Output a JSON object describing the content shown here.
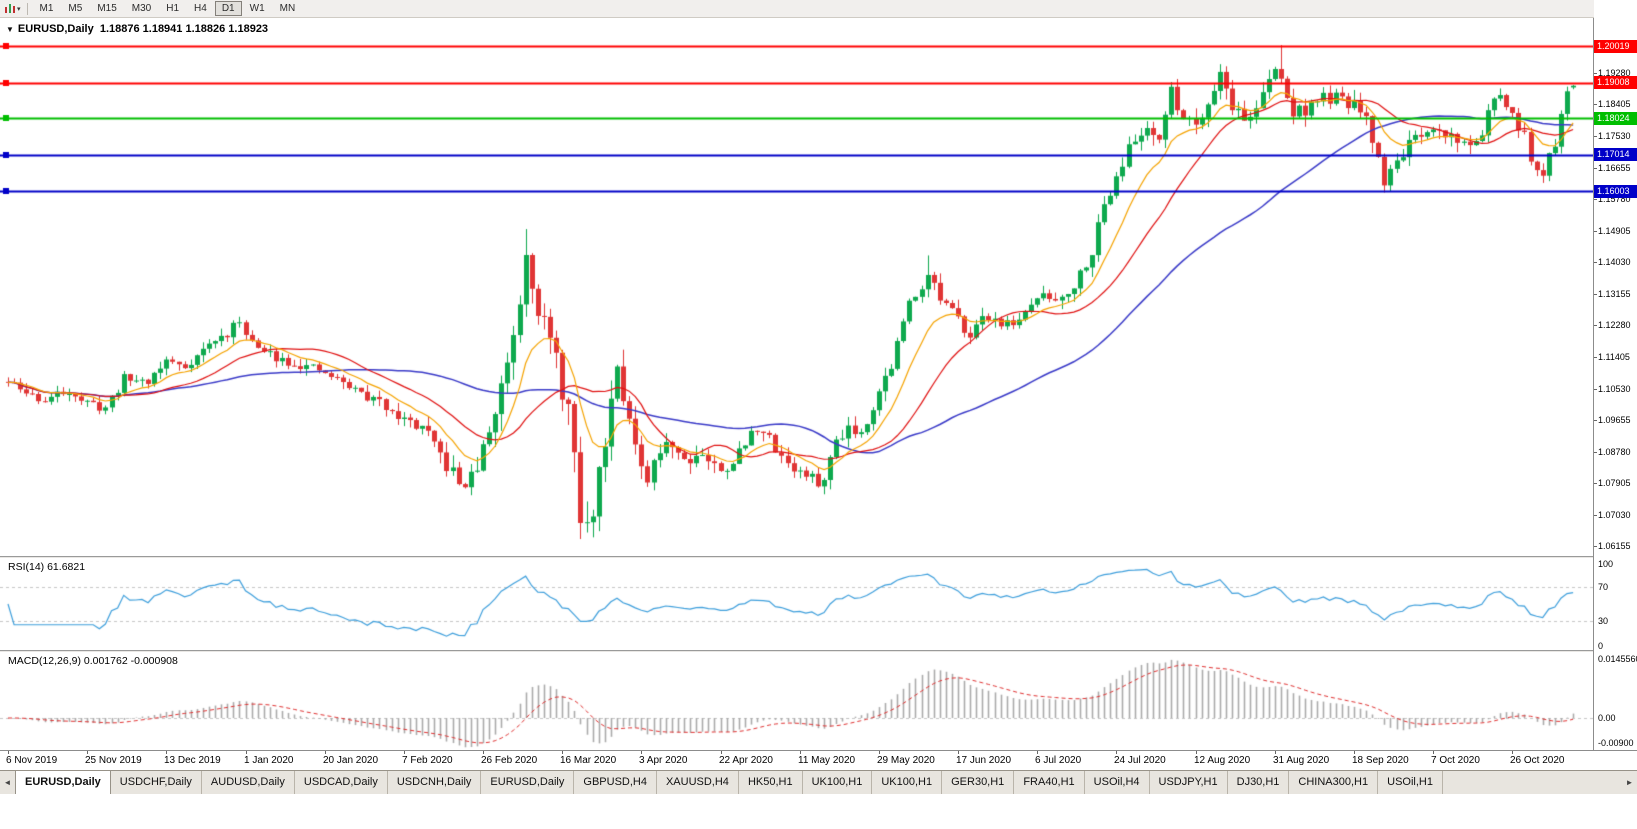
{
  "toolbar": {
    "chart_icon": "candlestick-chart-icon",
    "timeframes": [
      "M1",
      "M5",
      "M15",
      "M30",
      "H1",
      "H4",
      "D1",
      "W1",
      "MN"
    ],
    "active_timeframe": "D1"
  },
  "chart": {
    "symbol": "EURUSD",
    "period": "Daily",
    "title": "EURUSD,Daily  1.18876 1.18941 1.18826 1.18923",
    "ohlc": {
      "open": "1.18876",
      "high": "1.18941",
      "low": "1.18826",
      "close": "1.18923"
    }
  },
  "rsi": {
    "label": "RSI(14) 61.6821",
    "value": "61.6821",
    "levels": [
      "100",
      "70",
      "30",
      "0"
    ]
  },
  "macd": {
    "label": "MACD(12,26,9) 0.001762 -0.000908",
    "scale_labels": {
      "max": "0.0145560",
      "zero": "0.00",
      "min": "-0.00900"
    }
  },
  "price_axis": {
    "ticks": [
      "1.19280",
      "1.18405",
      "1.17530",
      "1.16655",
      "1.15780",
      "1.14905",
      "1.14030",
      "1.13155",
      "1.12280",
      "1.11405",
      "1.10530",
      "1.09655",
      "1.08780",
      "1.07905",
      "1.07030",
      "1.06155"
    ]
  },
  "hlines": [
    {
      "price": 1.20019,
      "label": "1.20019",
      "color": "#FF0000"
    },
    {
      "price": 1.19008,
      "label": "1.19008",
      "color": "#FF0000"
    },
    {
      "price": 1.18024,
      "label": "1.18024",
      "color": "#00BE00"
    },
    {
      "price": 1.17014,
      "label": "1.17014",
      "color": "#0000C8"
    },
    {
      "price": 1.16003,
      "label": "1.16003",
      "color": "#0000C8"
    }
  ],
  "date_axis": {
    "step": 13,
    "labels": [
      "6 Nov 2019",
      "25 Nov 2019",
      "13 Dec 2019",
      "1 Jan 2020",
      "20 Jan 2020",
      "7 Feb 2020",
      "26 Feb 2020",
      "16 Mar 2020",
      "3 Apr 2020",
      "22 Apr 2020",
      "11 May 2020",
      "29 May 2020",
      "17 Jun 2020",
      "6 Jul 2020",
      "24 Jul 2020",
      "12 Aug 2020",
      "31 Aug 2020",
      "18 Sep 2020",
      "7 Oct 2020",
      "26 Oct 2020"
    ]
  },
  "tabs": {
    "items": [
      "EURUSD,Daily",
      "USDCHF,Daily",
      "AUDUSD,Daily",
      "USDCAD,Daily",
      "USDCNH,Daily",
      "EURUSD,Daily",
      "GBPUSD,H4",
      "XAUUSD,H4",
      "HK50,H1",
      "UK100,H1",
      "UK100,H1",
      "GER30,H1",
      "FRA40,H1",
      "USOil,H4",
      "USDJPY,H1",
      "DJ30,H1",
      "CHINA300,H1",
      "USOil,H1"
    ],
    "active_index": 0,
    "scroll_left": "◄",
    "scroll_right": "►"
  },
  "colors": {
    "bull": "#0EA94E",
    "bear": "#E03535",
    "rsi_line": "#3E9FDC",
    "macd_hist": "#ABABAB",
    "macd_signal": "#E03030",
    "level_dash": "#C6C6C6"
  },
  "chart_data": {
    "type": "candlestick",
    "symbol": "EURUSD",
    "timeframe": "Daily",
    "bars": 258,
    "seed": 11,
    "ylim": [
      1.0589,
      1.208
    ],
    "last_bar": {
      "open": 1.18876,
      "high": 1.18941,
      "low": 1.18826,
      "close": 1.18923
    },
    "close_anchors": [
      [
        0,
        1.107
      ],
      [
        3,
        1.104
      ],
      [
        6,
        1.102
      ],
      [
        10,
        1.105
      ],
      [
        13,
        1.101
      ],
      [
        16,
        1.1
      ],
      [
        19,
        1.108
      ],
      [
        23,
        1.1075
      ],
      [
        26,
        1.113
      ],
      [
        29,
        1.1115
      ],
      [
        33,
        1.1175
      ],
      [
        36,
        1.1205
      ],
      [
        38,
        1.124
      ],
      [
        41,
        1.116
      ],
      [
        46,
        1.113
      ],
      [
        52,
        1.1095
      ],
      [
        56,
        1.106
      ],
      [
        60,
        1.102
      ],
      [
        63,
        1.1
      ],
      [
        65,
        1.0965
      ],
      [
        68,
        1.0945
      ],
      [
        71,
        1.0865
      ],
      [
        74,
        1.079
      ],
      [
        76,
        1.08
      ],
      [
        78,
        1.088
      ],
      [
        80,
        1.099
      ],
      [
        82,
        1.1135
      ],
      [
        84,
        1.13
      ],
      [
        85,
        1.145
      ],
      [
        87,
        1.128
      ],
      [
        89,
        1.118
      ],
      [
        92,
        1.0995
      ],
      [
        94,
        1.069
      ],
      [
        95,
        1.066
      ],
      [
        96,
        1.072
      ],
      [
        98,
        1.092
      ],
      [
        100,
        1.114
      ],
      [
        102,
        1.096
      ],
      [
        104,
        1.081
      ],
      [
        105,
        1.079
      ],
      [
        108,
        1.092
      ],
      [
        111,
        1.086
      ],
      [
        114,
        1.0875
      ],
      [
        117,
        1.082
      ],
      [
        120,
        1.0875
      ],
      [
        123,
        1.095
      ],
      [
        126,
        1.089
      ],
      [
        129,
        1.083
      ],
      [
        132,
        1.08
      ],
      [
        134,
        1.0795
      ],
      [
        136,
        1.0915
      ],
      [
        138,
        1.095
      ],
      [
        140,
        1.093
      ],
      [
        142,
        1.101
      ],
      [
        145,
        1.112
      ],
      [
        148,
        1.129
      ],
      [
        151,
        1.1375
      ],
      [
        153,
        1.13
      ],
      [
        156,
        1.124
      ],
      [
        158,
        1.121
      ],
      [
        161,
        1.1255
      ],
      [
        164,
        1.123
      ],
      [
        167,
        1.1255
      ],
      [
        169,
        1.131
      ],
      [
        172,
        1.13
      ],
      [
        175,
        1.134
      ],
      [
        178,
        1.144
      ],
      [
        180,
        1.156
      ],
      [
        182,
        1.165
      ],
      [
        184,
        1.1715
      ],
      [
        187,
        1.178
      ],
      [
        189,
        1.1755
      ],
      [
        191,
        1.187
      ],
      [
        193,
        1.181
      ],
      [
        195,
        1.179
      ],
      [
        197,
        1.185
      ],
      [
        199,
        1.193
      ],
      [
        201,
        1.184
      ],
      [
        203,
        1.1795
      ],
      [
        205,
        1.1835
      ],
      [
        207,
        1.19
      ],
      [
        208,
        1.1935
      ],
      [
        209,
        1.191
      ],
      [
        211,
        1.1815
      ],
      [
        213,
        1.183
      ],
      [
        215,
        1.185
      ],
      [
        217,
        1.186
      ],
      [
        219,
        1.1845
      ],
      [
        221,
        1.184
      ],
      [
        223,
        1.179
      ],
      [
        225,
        1.169
      ],
      [
        226,
        1.163
      ],
      [
        228,
        1.168
      ],
      [
        230,
        1.174
      ],
      [
        232,
        1.1735
      ],
      [
        234,
        1.1765
      ],
      [
        236,
        1.176
      ],
      [
        238,
        1.1745
      ],
      [
        240,
        1.172
      ],
      [
        242,
        1.177
      ],
      [
        244,
        1.186
      ],
      [
        246,
        1.184
      ],
      [
        247,
        1.181
      ],
      [
        249,
        1.175
      ],
      [
        250,
        1.1672
      ],
      [
        251,
        1.1647
      ],
      [
        252,
        1.164
      ],
      [
        253,
        1.1715
      ],
      [
        254,
        1.172
      ],
      [
        255,
        1.1825
      ],
      [
        256,
        1.1875
      ],
      [
        257,
        1.189
      ]
    ],
    "vol_anchors": [
      [
        0,
        0.0045
      ],
      [
        55,
        0.0045
      ],
      [
        70,
        0.0065
      ],
      [
        80,
        0.01
      ],
      [
        85,
        0.012
      ],
      [
        92,
        0.014
      ],
      [
        96,
        0.013
      ],
      [
        101,
        0.011
      ],
      [
        108,
        0.008
      ],
      [
        118,
        0.006
      ],
      [
        135,
        0.006
      ],
      [
        150,
        0.007
      ],
      [
        165,
        0.0045
      ],
      [
        180,
        0.0065
      ],
      [
        195,
        0.007
      ],
      [
        209,
        0.0075
      ],
      [
        225,
        0.0065
      ],
      [
        245,
        0.0055
      ],
      [
        257,
        0.0045
      ]
    ],
    "extremes": [
      {
        "i": 85,
        "high": 1.1495
      },
      {
        "i": 94,
        "low": 1.0636
      },
      {
        "i": 151,
        "high": 1.1422
      },
      {
        "i": 199,
        "high": 1.1952
      },
      {
        "i": 209,
        "high": 1.2005
      },
      {
        "i": 226,
        "low": 1.1612
      },
      {
        "i": 252,
        "low": 1.1623
      }
    ],
    "overlays": [
      {
        "name": "ma-fast",
        "period": 10,
        "method": "ema",
        "color": "#F5A300"
      },
      {
        "name": "ma-mid",
        "period": 20,
        "method": "sma",
        "color": "#E01010"
      },
      {
        "name": "ma-slow",
        "period": 50,
        "method": "sma",
        "color": "#3A3AC8"
      }
    ],
    "rsi": {
      "period": 14,
      "value": 61.6821,
      "color": "#3E9FDC",
      "levels": [
        70,
        30
      ]
    },
    "macd": {
      "fast": 12,
      "slow": 26,
      "signal": 9,
      "value": 0.001762,
      "signal_value": -0.000908,
      "scale_max": 0.014556,
      "scale_min": -0.009
    }
  }
}
